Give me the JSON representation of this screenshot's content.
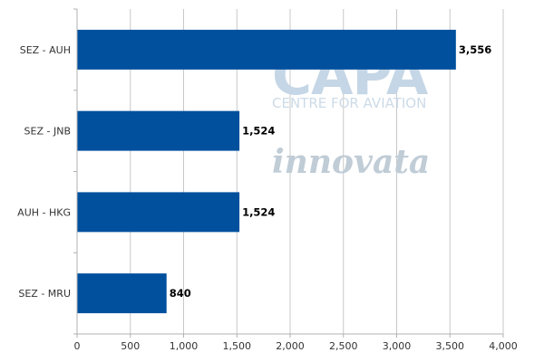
{
  "chart_data": {
    "type": "bar",
    "orientation": "horizontal",
    "categories": [
      "SEZ - AUH",
      "SEZ - JNB",
      "AUH - HKG",
      "SEZ - MRU"
    ],
    "values": [
      3556,
      1524,
      1524,
      840
    ],
    "value_labels": [
      "3,556",
      "1,524",
      "1,524",
      "840"
    ],
    "xlim": [
      0,
      4000
    ],
    "x_ticks": [
      0,
      500,
      1000,
      1500,
      2000,
      2500,
      3000,
      3500,
      4000
    ],
    "x_tick_labels": [
      "0",
      "500",
      "1,000",
      "1,500",
      "2,000",
      "2,500",
      "3,000",
      "3,500",
      "4,000"
    ],
    "grid": true,
    "bar_color": "#00509e",
    "title": "",
    "xlabel": "",
    "ylabel": ""
  },
  "watermark": {
    "brand": "CAPA",
    "tagline": "CENTRE FOR AVIATION",
    "partner": "innovata"
  }
}
